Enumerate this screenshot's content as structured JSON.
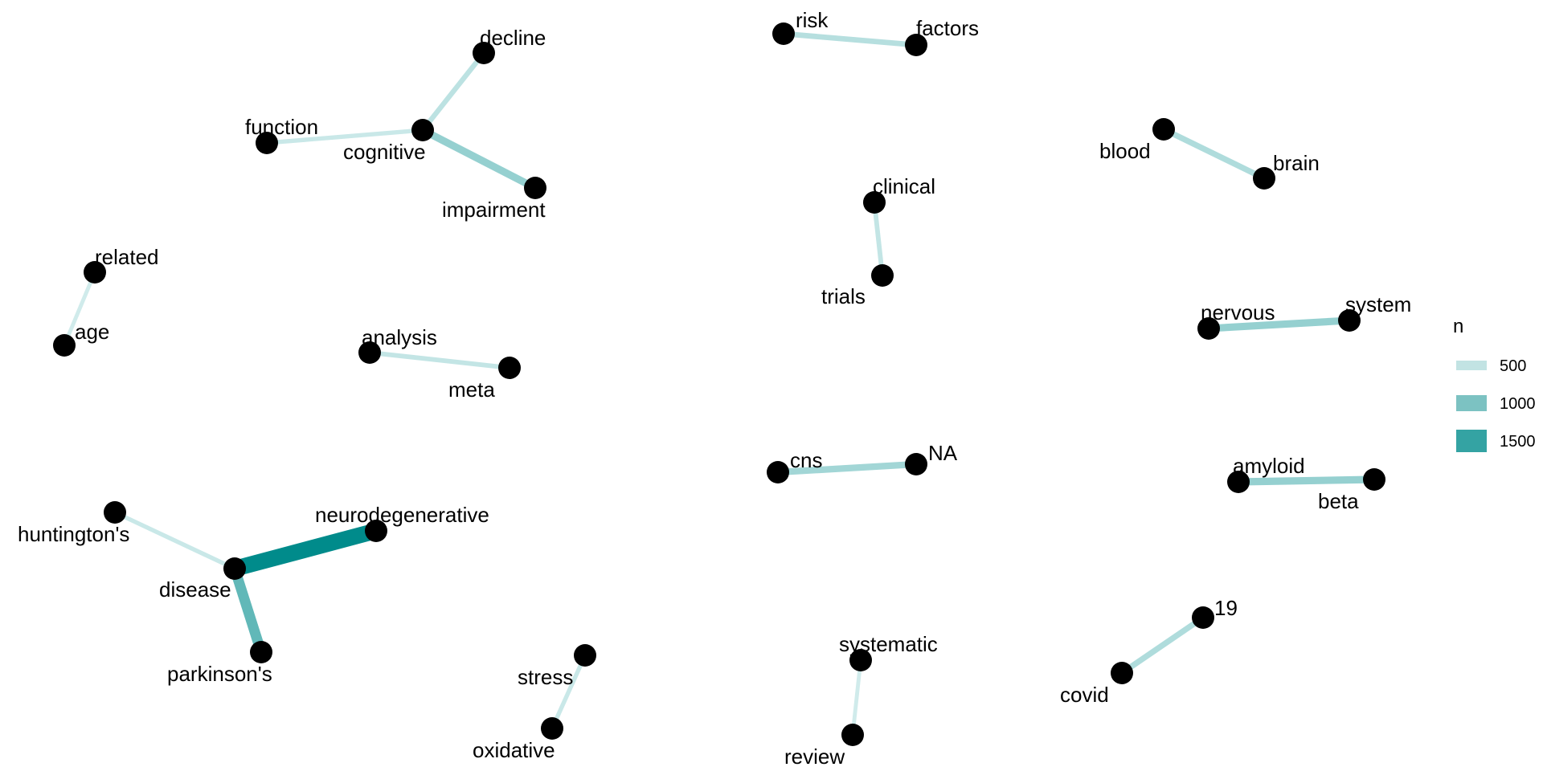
{
  "chart_data": {
    "type": "network",
    "legend": {
      "title": "n",
      "placement": "right",
      "items": [
        {
          "label": "500",
          "value": 500,
          "color": "#c2e3e3"
        },
        {
          "label": "1000",
          "value": 1000,
          "color": "#7cc2c2"
        },
        {
          "label": "1500",
          "value": 1500,
          "color": "#34a3a3"
        }
      ]
    },
    "nodes": [
      {
        "id": "cognitive",
        "label": "cognitive"
      },
      {
        "id": "decline",
        "label": "decline"
      },
      {
        "id": "function",
        "label": "function"
      },
      {
        "id": "impairment",
        "label": "impairment"
      },
      {
        "id": "risk",
        "label": "risk"
      },
      {
        "id": "factors",
        "label": "factors"
      },
      {
        "id": "blood",
        "label": "blood"
      },
      {
        "id": "brain",
        "label": "brain"
      },
      {
        "id": "clinical",
        "label": "clinical"
      },
      {
        "id": "trials",
        "label": "trials"
      },
      {
        "id": "related",
        "label": "related"
      },
      {
        "id": "age",
        "label": "age"
      },
      {
        "id": "analysis",
        "label": "analysis"
      },
      {
        "id": "meta",
        "label": "meta"
      },
      {
        "id": "nervous",
        "label": "nervous"
      },
      {
        "id": "system",
        "label": "system"
      },
      {
        "id": "cns",
        "label": "cns"
      },
      {
        "id": "NA",
        "label": "NA"
      },
      {
        "id": "amyloid",
        "label": "amyloid"
      },
      {
        "id": "beta",
        "label": "beta"
      },
      {
        "id": "huntingtons",
        "label": "huntington's"
      },
      {
        "id": "neurodegenerative",
        "label": "neurodegenerative"
      },
      {
        "id": "disease",
        "label": "disease"
      },
      {
        "id": "parkinsons",
        "label": "parkinson's"
      },
      {
        "id": "stress",
        "label": "stress"
      },
      {
        "id": "oxidative",
        "label": "oxidative"
      },
      {
        "id": "systematic",
        "label": "systematic"
      },
      {
        "id": "review",
        "label": "review"
      },
      {
        "id": "n19",
        "label": "19"
      },
      {
        "id": "covid",
        "label": "covid"
      }
    ],
    "edges": [
      {
        "source": "cognitive",
        "target": "decline",
        "n": 350
      },
      {
        "source": "cognitive",
        "target": "function",
        "n": 250
      },
      {
        "source": "cognitive",
        "target": "impairment",
        "n": 650
      },
      {
        "source": "risk",
        "target": "factors",
        "n": 400
      },
      {
        "source": "blood",
        "target": "brain",
        "n": 450
      },
      {
        "source": "clinical",
        "target": "trials",
        "n": 300
      },
      {
        "source": "related",
        "target": "age",
        "n": 200
      },
      {
        "source": "analysis",
        "target": "meta",
        "n": 300
      },
      {
        "source": "nervous",
        "target": "system",
        "n": 650
      },
      {
        "source": "cns",
        "target": "NA",
        "n": 550
      },
      {
        "source": "amyloid",
        "target": "beta",
        "n": 650
      },
      {
        "source": "huntingtons",
        "target": "disease",
        "n": 250
      },
      {
        "source": "disease",
        "target": "neurodegenerative",
        "n": 1800
      },
      {
        "source": "disease",
        "target": "parkinsons",
        "n": 1050
      },
      {
        "source": "stress",
        "target": "oxidative",
        "n": 250
      },
      {
        "source": "systematic",
        "target": "review",
        "n": 200
      },
      {
        "source": "n19",
        "target": "covid",
        "n": 450
      }
    ]
  }
}
